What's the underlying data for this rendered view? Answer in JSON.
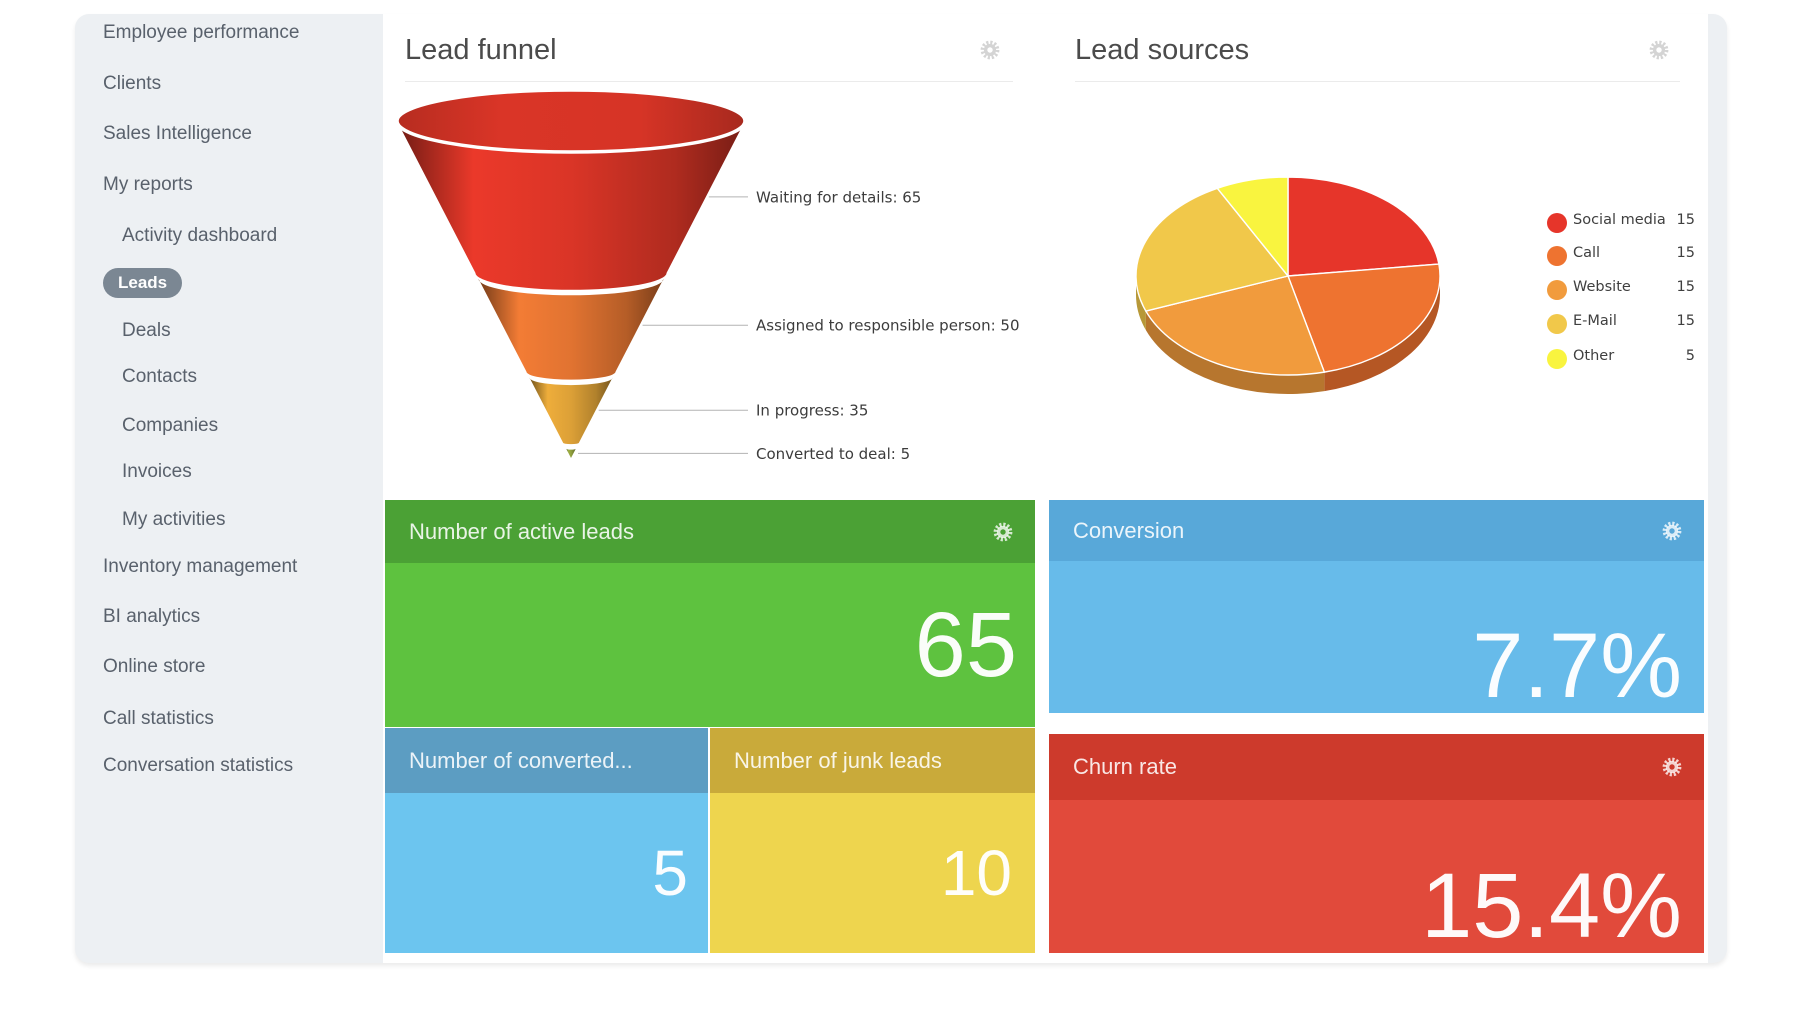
{
  "sidebar": {
    "items": [
      {
        "label": "Employee performance",
        "indent": 0,
        "active": false
      },
      {
        "label": "Clients",
        "indent": 0,
        "active": false
      },
      {
        "label": "Sales Intelligence",
        "indent": 0,
        "active": false
      },
      {
        "label": "My reports",
        "indent": 0,
        "active": false
      },
      {
        "label": "Activity dashboard",
        "indent": 1,
        "active": false
      },
      {
        "label": "Leads",
        "indent": 1,
        "active": true
      },
      {
        "label": "Deals",
        "indent": 1,
        "active": false
      },
      {
        "label": "Contacts",
        "indent": 1,
        "active": false
      },
      {
        "label": "Companies",
        "indent": 1,
        "active": false
      },
      {
        "label": "Invoices",
        "indent": 1,
        "active": false
      },
      {
        "label": "My activities",
        "indent": 1,
        "active": false
      },
      {
        "label": "Inventory management",
        "indent": 0,
        "active": false
      },
      {
        "label": "BI analytics",
        "indent": 0,
        "active": false
      },
      {
        "label": "Online store",
        "indent": 0,
        "active": false
      },
      {
        "label": "Call statistics",
        "indent": 0,
        "active": false
      },
      {
        "label": "Conversation statistics",
        "indent": 0,
        "active": false
      }
    ],
    "active_item_color": "#7b8793",
    "background_color": "#edf0f3"
  },
  "panels": {
    "funnel": {
      "title": "Lead funnel"
    },
    "sources": {
      "title": "Lead sources"
    }
  },
  "chart_data": [
    {
      "type": "funnel",
      "title": "Lead funnel",
      "stages": [
        {
          "label": "Waiting for details",
          "value": 65,
          "color": "#d63426"
        },
        {
          "label": "Assigned to responsible person",
          "value": 50,
          "color": "#dd7130"
        },
        {
          "label": "In progress",
          "value": 35,
          "color": "#d89d36"
        },
        {
          "label": "Converted to deal",
          "value": 5,
          "color": "#8f9e3d"
        }
      ]
    },
    {
      "type": "pie",
      "title": "Lead sources",
      "slices": [
        {
          "label": "Social media",
          "value": 15,
          "color": "#e6352a"
        },
        {
          "label": "Call",
          "value": 15,
          "color": "#ee7330"
        },
        {
          "label": "Website",
          "value": 15,
          "color": "#f19b3d"
        },
        {
          "label": "E-Mail",
          "value": 15,
          "color": "#f1c84a"
        },
        {
          "label": "Other",
          "value": 5,
          "color": "#f9f43f"
        }
      ],
      "legend_position": "right",
      "effect_3d": true
    }
  ],
  "tiles": {
    "active_leads": {
      "title": "Number of active leads",
      "value": "65",
      "header_color": "#4ba135",
      "body_color": "#5ec23f"
    },
    "conversion": {
      "title": "Conversion",
      "value": "7.7%",
      "header_color": "#58a8d9",
      "body_color": "#67bbea"
    },
    "converted": {
      "title": "Number of converted...",
      "value": "5",
      "header_color": "#5c9dc2",
      "body_color": "#6cc5ef"
    },
    "junk": {
      "title": "Number of junk leads",
      "value": "10",
      "header_color": "#c9aa3a",
      "body_color": "#eed54e"
    },
    "churn": {
      "title": "Churn rate",
      "value": "15.4%",
      "header_color": "#cd3a2c",
      "body_color": "#e14a3b"
    }
  }
}
